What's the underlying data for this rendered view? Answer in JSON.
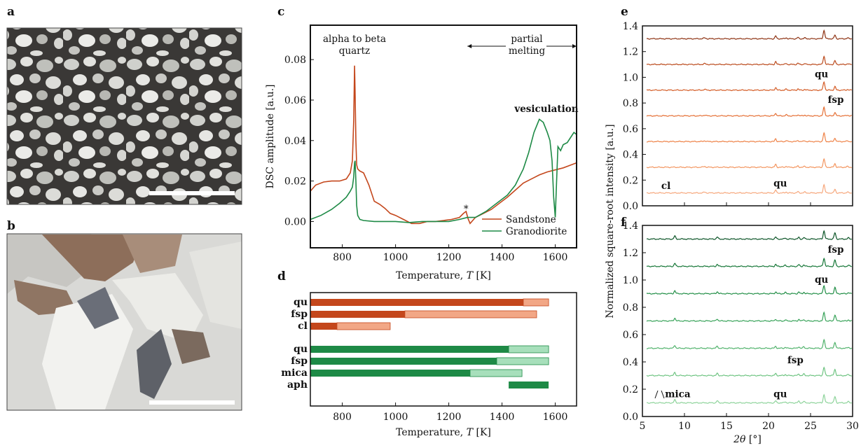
{
  "panels": {
    "a": "a",
    "b": "b",
    "c": "c",
    "d": "d",
    "e": "e",
    "f": "f"
  },
  "colors": {
    "sandstone": "#c4471c",
    "sandstone_light": "#f2a786",
    "granodiorite": "#1e8a46",
    "granodiorite_light": "#a7dfbb",
    "e_lines": [
      "#f6a77c",
      "#f3955f",
      "#ee8247",
      "#e56f34",
      "#d45c26",
      "#bb4a1c",
      "#8e3313"
    ],
    "f_lines": [
      "#8dd39a",
      "#6fc482",
      "#50b26b",
      "#37a258",
      "#218e46",
      "#137535",
      "#0b5427"
    ]
  },
  "chart_data": [
    {
      "id": "c",
      "type": "line",
      "xlabel_text": "Temperature, ",
      "xlabel_var": "T",
      "xlabel_unit": " [K]",
      "ylabel": "DSC amplitude [a.u.]",
      "xlim": [
        680,
        1680
      ],
      "ylim": [
        -0.013,
        0.097
      ],
      "xticks": [
        800,
        1000,
        1200,
        1400,
        1600
      ],
      "yticks": [
        0.0,
        0.02,
        0.04,
        0.06,
        0.08
      ],
      "ytick_labels": [
        "0.00",
        "0.02",
        "0.04",
        "0.06",
        "0.08"
      ],
      "annotations": {
        "alpha_beta_l1": "alpha to beta",
        "alpha_beta_l2": "quartz",
        "partial_l1": "partial",
        "partial_l2": "melting",
        "vesiculation": "vesiculation",
        "asterisk": "*"
      },
      "partial_melting_arrow": [
        1270,
        1680
      ],
      "asterisk_at": [
        1265,
        0.006
      ],
      "legend": "lower-right",
      "series": [
        {
          "name": "Sandstone",
          "color_key": "sandstone",
          "x": [
            680,
            700,
            730,
            760,
            790,
            815,
            830,
            838,
            843,
            846,
            848,
            851,
            854,
            858,
            865,
            880,
            900,
            920,
            940,
            960,
            980,
            1000,
            1030,
            1060,
            1090,
            1120,
            1150,
            1180,
            1210,
            1240,
            1255,
            1265,
            1272,
            1280,
            1300,
            1330,
            1360,
            1390,
            1420,
            1450,
            1480,
            1510,
            1540,
            1570,
            1600,
            1630,
            1660,
            1680
          ],
          "y": [
            0.015,
            0.018,
            0.0195,
            0.02,
            0.02,
            0.021,
            0.024,
            0.03,
            0.05,
            0.077,
            0.065,
            0.04,
            0.028,
            0.026,
            0.025,
            0.024,
            0.018,
            0.01,
            0.0085,
            0.0065,
            0.004,
            0.003,
            0.001,
            -0.001,
            -0.001,
            0.0,
            0.0,
            0.0005,
            0.001,
            0.002,
            0.004,
            0.005,
            0.0015,
            -0.001,
            0.002,
            0.004,
            0.006,
            0.009,
            0.012,
            0.0155,
            0.019,
            0.021,
            0.023,
            0.0245,
            0.0255,
            0.0265,
            0.028,
            0.029
          ]
        },
        {
          "name": "Granodiorite",
          "color_key": "granodiorite",
          "x": [
            680,
            720,
            760,
            790,
            815,
            830,
            838,
            843,
            846,
            848,
            851,
            854,
            858,
            866,
            880,
            920,
            960,
            1000,
            1050,
            1100,
            1150,
            1200,
            1240,
            1270,
            1300,
            1340,
            1380,
            1420,
            1450,
            1480,
            1500,
            1520,
            1540,
            1555,
            1570,
            1580,
            1588,
            1594,
            1600,
            1605,
            1610,
            1620,
            1630,
            1645,
            1660,
            1670,
            1680
          ],
          "y": [
            0.001,
            0.003,
            0.006,
            0.009,
            0.012,
            0.015,
            0.017,
            0.022,
            0.029,
            0.03,
            0.02,
            0.008,
            0.003,
            0.001,
            0.0005,
            0.0,
            0.0,
            0.0,
            -0.0005,
            0.0,
            0.0,
            0.0,
            0.001,
            0.002,
            0.002,
            0.005,
            0.009,
            0.013,
            0.018,
            0.026,
            0.034,
            0.044,
            0.0505,
            0.049,
            0.044,
            0.04,
            0.03,
            0.012,
            0.002,
            0.02,
            0.037,
            0.035,
            0.038,
            0.039,
            0.042,
            0.044,
            0.043
          ]
        }
      ]
    },
    {
      "id": "d",
      "type": "bar",
      "orientation": "horizontal",
      "xlabel_text": "Temperature, ",
      "xlabel_var": "T",
      "xlabel_unit": " [K]",
      "xlim": [
        680,
        1680
      ],
      "xticks": [
        800,
        1000,
        1200,
        1400,
        1600
      ],
      "bars": [
        {
          "label": "qu",
          "group": "sandstone",
          "start": 680,
          "dark_end": 1480,
          "light_end": 1575
        },
        {
          "label": "fsp",
          "group": "sandstone",
          "start": 680,
          "dark_end": 1035,
          "light_end": 1530
        },
        {
          "label": "cl",
          "group": "sandstone",
          "start": 680,
          "dark_end": 780,
          "light_end": 980
        },
        {
          "label": "qu",
          "group": "granodiorite",
          "start": 680,
          "dark_end": 1425,
          "light_end": 1575
        },
        {
          "label": "fsp",
          "group": "granodiorite",
          "start": 680,
          "dark_end": 1380,
          "light_end": 1575
        },
        {
          "label": "mica",
          "group": "granodiorite",
          "start": 680,
          "dark_end": 1280,
          "light_end": 1475
        },
        {
          "label": "aph",
          "group": "granodiorite",
          "start": 1425,
          "dark_end": 1575,
          "light_end": 1575
        }
      ]
    },
    {
      "id": "e",
      "type": "line",
      "xlim": [
        5,
        30
      ],
      "ylim": [
        0.0,
        1.4
      ],
      "xticks": [
        5,
        10,
        15,
        20,
        25,
        30
      ],
      "yticks": [
        0.0,
        0.2,
        0.4,
        0.6,
        0.8,
        1.0,
        1.2,
        1.4
      ],
      "ytick_labels": [
        "0.0",
        "0.2",
        "0.4",
        "0.6",
        "0.8",
        "1.0",
        "1.2",
        "1.4"
      ],
      "offsets": [
        0.1,
        0.3,
        0.5,
        0.7,
        0.9,
        1.1,
        1.3
      ],
      "labels": [
        {
          "text": "qu",
          "x": 26.3,
          "y": 1.0
        },
        {
          "text": "fsp",
          "x": 28.0,
          "y": 0.8
        },
        {
          "text": "cl",
          "x": 7.8,
          "y": 0.13
        },
        {
          "text": "qu",
          "x": 21.4,
          "y": 0.15
        }
      ],
      "peaks": [
        {
          "x": 26.6,
          "h": 0.065,
          "w": 0.14
        },
        {
          "x": 20.85,
          "h": 0.022,
          "w": 0.12
        },
        {
          "x": 27.9,
          "h": 0.028,
          "w": 0.13
        },
        {
          "x": 23.5,
          "h": 0.01,
          "w": 0.12
        },
        {
          "x": 22.1,
          "h": 0.008,
          "w": 0.12
        },
        {
          "x": 24.3,
          "h": 0.007,
          "w": 0.12
        },
        {
          "x": 12.4,
          "h": 0.006,
          "w": 0.18
        },
        {
          "x": 29.4,
          "h": 0.006,
          "w": 0.13
        }
      ]
    },
    {
      "id": "f",
      "type": "line",
      "xlabel_var": "2θ",
      "xlabel_unit": " [°]",
      "ylabel": "Normalized square-root intensity [a.u.]",
      "xlim": [
        5,
        30
      ],
      "ylim": [
        0.0,
        1.4
      ],
      "xticks": [
        5,
        10,
        15,
        20,
        25,
        30
      ],
      "xtick_labels": [
        "5",
        "10",
        "15",
        "20",
        "25",
        "30"
      ],
      "yticks": [
        0.0,
        0.2,
        0.4,
        0.6,
        0.8,
        1.0,
        1.2,
        1.4
      ],
      "ytick_labels": [
        "0.0",
        "0.2",
        "0.4",
        "0.6",
        "0.8",
        "1.0",
        "1.2",
        "1.4"
      ],
      "offsets": [
        0.1,
        0.3,
        0.5,
        0.7,
        0.9,
        1.1,
        1.3
      ],
      "labels": [
        {
          "text": "fsp",
          "x": 28.0,
          "y": 1.2
        },
        {
          "text": "qu",
          "x": 26.3,
          "y": 0.98
        },
        {
          "text": "fsp",
          "x": 23.2,
          "y": 0.39
        },
        {
          "text": "mica",
          "x": 9.2,
          "y": 0.14
        },
        {
          "text": "qu",
          "x": 21.4,
          "y": 0.14
        }
      ],
      "peaks": [
        {
          "x": 26.6,
          "h": 0.06,
          "w": 0.14
        },
        {
          "x": 27.9,
          "h": 0.045,
          "w": 0.14
        },
        {
          "x": 8.85,
          "h": 0.022,
          "w": 0.13
        },
        {
          "x": 13.9,
          "h": 0.015,
          "w": 0.13
        },
        {
          "x": 20.85,
          "h": 0.014,
          "w": 0.12
        },
        {
          "x": 23.6,
          "h": 0.012,
          "w": 0.12
        },
        {
          "x": 24.2,
          "h": 0.011,
          "w": 0.12
        },
        {
          "x": 22.0,
          "h": 0.008,
          "w": 0.12
        },
        {
          "x": 29.5,
          "h": 0.008,
          "w": 0.13
        }
      ]
    }
  ]
}
